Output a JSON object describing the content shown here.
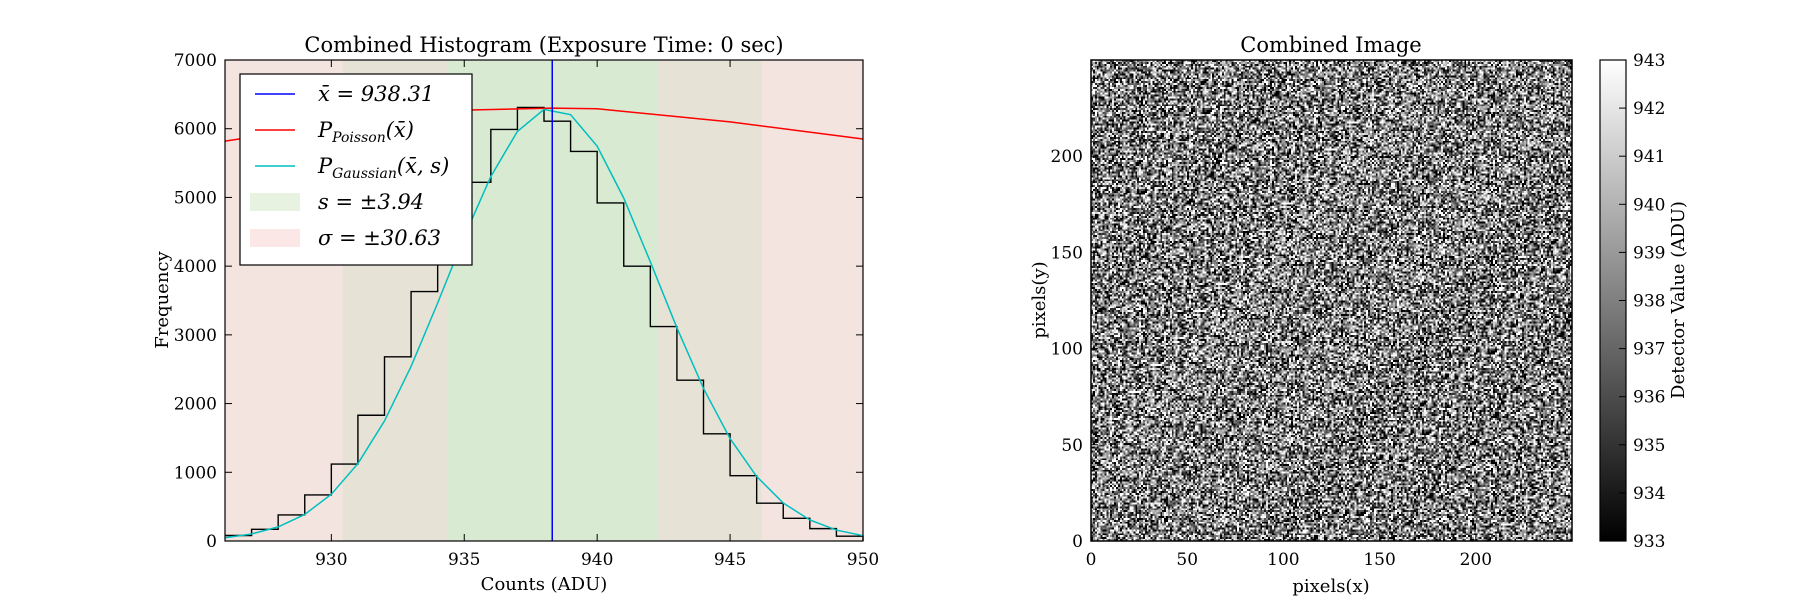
{
  "chart_data": [
    {
      "type": "histogram",
      "title": "Combined Histogram (Exposure Time: 0 sec)",
      "xlabel": "Counts (ADU)",
      "ylabel": "Frequency",
      "xlim": [
        926,
        950
      ],
      "ylim": [
        0,
        7000
      ],
      "x_ticks": [
        930,
        935,
        940,
        945,
        950
      ],
      "y_ticks": [
        0,
        1000,
        2000,
        3000,
        4000,
        5000,
        6000,
        7000
      ],
      "histogram": {
        "bin_edges": [
          926,
          927,
          928,
          929,
          930,
          931,
          932,
          933,
          934,
          935,
          936,
          937,
          938,
          939,
          940,
          941,
          942,
          943,
          944,
          945,
          946,
          947,
          948,
          949,
          950
        ],
        "counts": [
          80,
          170,
          380,
          670,
          1120,
          1830,
          2680,
          3630,
          4480,
          5220,
          5990,
          6310,
          6110,
          5670,
          4920,
          4000,
          3120,
          2340,
          1560,
          950,
          550,
          330,
          180,
          70
        ]
      },
      "mean_line": {
        "x": 938.31,
        "color": "#0000ff"
      },
      "poisson_curve": {
        "color": "#ff0000",
        "mean": 938.31,
        "peak": 6300,
        "points": [
          [
            926,
            5820
          ],
          [
            930,
            6050
          ],
          [
            935,
            6270
          ],
          [
            938.31,
            6300
          ],
          [
            940,
            6290
          ],
          [
            945,
            6100
          ],
          [
            950,
            5850
          ]
        ]
      },
      "gaussian_curve": {
        "color": "#00bfbf",
        "mean": 938.31,
        "std": 3.94,
        "peak": 6300
      },
      "bands": [
        {
          "label": "s",
          "center": 938.31,
          "halfwidth": 3.94,
          "color": "#d9ead3"
        },
        {
          "label": "sigma",
          "center": 938.31,
          "halfwidth": 30.63,
          "color": "#f4e4e0"
        },
        {
          "label": "2s",
          "center": 938.31,
          "halfwidth": 7.88,
          "color": "#e6e3d6"
        }
      ],
      "legend": {
        "placement": "top-left",
        "entries": [
          {
            "symbol": "line",
            "color": "#0000ff",
            "prefix": "x̄ = ",
            "value": "938.31"
          },
          {
            "symbol": "line",
            "color": "#ff0000",
            "main": "P",
            "sub": "Poisson",
            "suffix": "(x̄)"
          },
          {
            "symbol": "line",
            "color": "#00bfbf",
            "main": "P",
            "sub": "Gaussian",
            "suffix": "(x̄, s)"
          },
          {
            "symbol": "patch",
            "color": "#e8f2e1",
            "prefix": "s = ±",
            "value": "3.94"
          },
          {
            "symbol": "patch",
            "color": "#fbe7e6",
            "prefix": "σ = ±",
            "value": "30.63"
          }
        ]
      }
    },
    {
      "type": "heatmap",
      "title": "Combined Image",
      "xlabel": "pixels(x)",
      "ylabel": "pixels(y)",
      "xlim": [
        0,
        250
      ],
      "ylim": [
        0,
        250
      ],
      "x_ticks": [
        0,
        50,
        100,
        150,
        200
      ],
      "y_ticks": [
        0,
        50,
        100,
        150,
        200
      ],
      "grid_size": 250,
      "colormap": "gray",
      "colorbar": {
        "label": "Detector Value (ADU)",
        "min": 933,
        "max": 943,
        "ticks": [
          933,
          934,
          935,
          936,
          937,
          938,
          939,
          940,
          941,
          942,
          943
        ]
      }
    }
  ]
}
